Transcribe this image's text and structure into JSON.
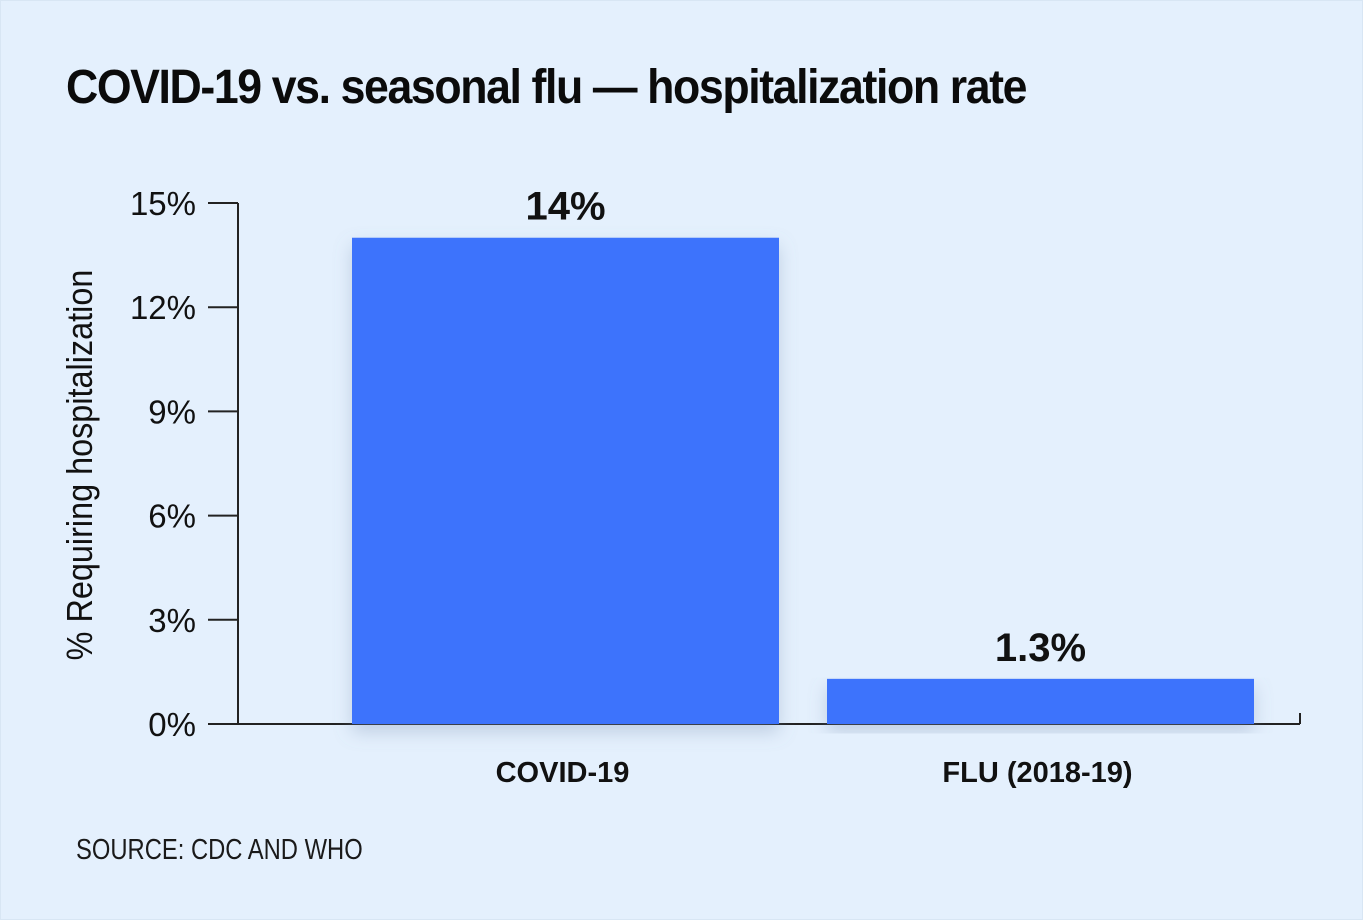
{
  "chart_data": {
    "type": "bar",
    "title": "COVID-19 vs. seasonal flu — hospitalization rate",
    "categories": [
      "COVID-19",
      "FLU (2018-19)"
    ],
    "values": [
      14,
      1.3
    ],
    "data_labels": [
      "14%",
      "1.3%"
    ],
    "xlabel": "",
    "ylabel": "% Requiring hospitalization",
    "ylim": [
      0,
      15
    ],
    "yticks": [
      0,
      3,
      6,
      9,
      12,
      15
    ],
    "ytick_labels": [
      "0%",
      "3%",
      "6%",
      "9%",
      "12%",
      "15%"
    ],
    "grid": false,
    "bar_color": "#3d73fc"
  },
  "source": "SOURCE: CDC AND WHO"
}
